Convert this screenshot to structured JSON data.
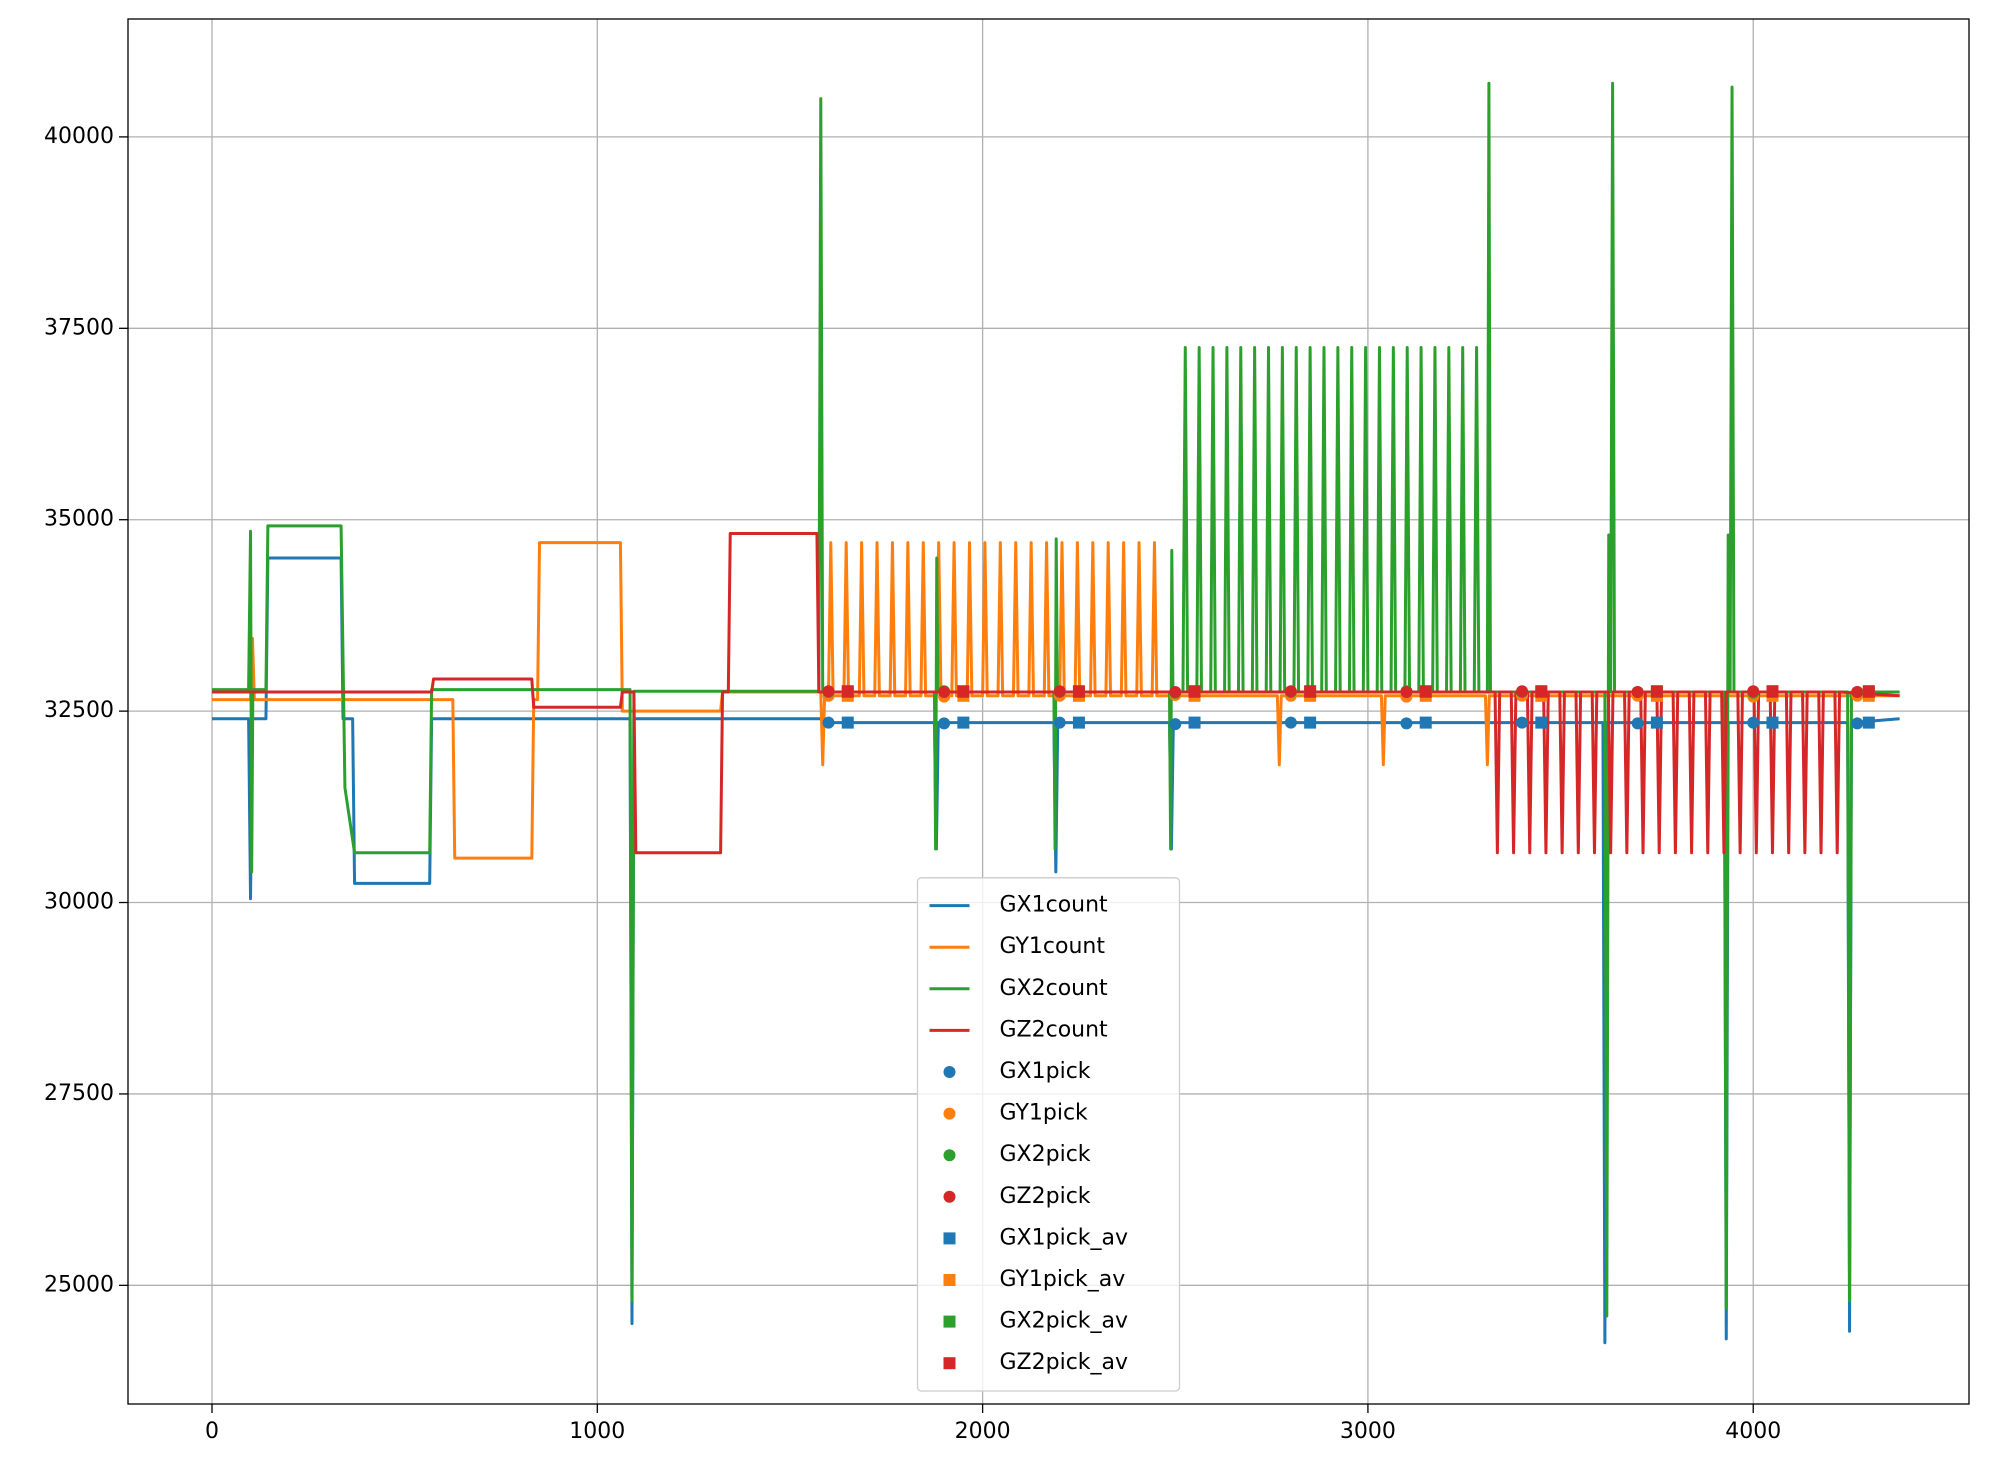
{
  "chart_data": {
    "type": "line",
    "xlim": [
      -218,
      4560
    ],
    "ylim": [
      23450,
      41540
    ],
    "xticks": [
      0,
      1000,
      2000,
      3000,
      4000
    ],
    "yticks": [
      25000,
      27500,
      30000,
      32500,
      35000,
      37500,
      40000
    ],
    "grid": true,
    "legend": "lower center",
    "series": [
      {
        "name": "GX1count",
        "color": "#1f77b4",
        "x": [
          0,
          95,
          100,
          105,
          140,
          145,
          335,
          340,
          365,
          370,
          565,
          570,
          1085,
          1090,
          1095,
          1580,
          1585,
          1875,
          1880,
          1885,
          2185,
          2190,
          2195,
          2485,
          2490,
          2495,
          3610,
          3615,
          3620,
          3925,
          3930,
          3935,
          4245,
          4250,
          4255,
          4380
        ],
        "values": [
          32400,
          32400,
          30050,
          32400,
          32400,
          34500,
          34500,
          32400,
          32400,
          30250,
          30250,
          32400,
          32400,
          24500,
          32400,
          32400,
          32350,
          32350,
          30700,
          32350,
          32350,
          30400,
          32350,
          32350,
          30700,
          32350,
          32350,
          24250,
          32350,
          32350,
          24300,
          32350,
          32350,
          24400,
          32350,
          32400
        ]
      },
      {
        "name": "GY1count",
        "color": "#ff7f0e",
        "x": [
          0,
          100,
          105,
          110,
          625,
          630,
          830,
          835,
          845,
          850,
          1060,
          1065,
          1320,
          1325,
          1580,
          1585,
          1590,
          1600,
          1606,
          1612,
          1640,
          1646,
          1652,
          1680,
          1686,
          1692,
          1720,
          1726,
          1732,
          1760,
          1766,
          1772,
          1800,
          1806,
          1812,
          1840,
          1846,
          1852,
          1880,
          1886,
          1892,
          1920,
          1926,
          1932,
          1960,
          1966,
          1972,
          2000,
          2006,
          2012,
          2040,
          2046,
          2052,
          2080,
          2086,
          2092,
          2120,
          2126,
          2132,
          2160,
          2166,
          2172,
          2200,
          2206,
          2212,
          2240,
          2246,
          2252,
          2280,
          2286,
          2292,
          2320,
          2326,
          2332,
          2360,
          2366,
          2372,
          2400,
          2406,
          2412,
          2440,
          2446,
          2452,
          2500,
          2765,
          2770,
          2775,
          3035,
          3040,
          3045,
          3305,
          3310,
          3315,
          4380
        ],
        "values": [
          32650,
          32650,
          33450,
          32650,
          32650,
          30580,
          30580,
          32650,
          32650,
          34700,
          34700,
          32500,
          32500,
          32750,
          32750,
          31800,
          32700,
          32700,
          34700,
          32700,
          32700,
          34700,
          32700,
          32700,
          34700,
          32700,
          32700,
          34700,
          32700,
          32700,
          34700,
          32700,
          32700,
          34700,
          32700,
          32700,
          34700,
          32700,
          32700,
          34700,
          32700,
          32700,
          34700,
          32700,
          32700,
          34700,
          32700,
          32700,
          34700,
          32700,
          32700,
          34700,
          32700,
          32700,
          34700,
          32700,
          32700,
          34700,
          32700,
          32700,
          34700,
          32700,
          32700,
          34700,
          32700,
          32700,
          34700,
          32700,
          32700,
          34700,
          32700,
          32700,
          34700,
          32700,
          32700,
          34700,
          32700,
          32700,
          34700,
          32700,
          32700,
          34700,
          32700,
          32700,
          32700,
          31800,
          32700,
          32700,
          31800,
          32700,
          32700,
          31800,
          32700,
          32700
        ]
      },
      {
        "name": "GX2count",
        "color": "#2ca02c",
        "x": [
          0,
          95,
          100,
          103,
          106,
          140,
          145,
          335,
          345,
          370,
          565,
          570,
          1085,
          1090,
          1095,
          1575,
          1580,
          1585,
          1875,
          1878,
          1881,
          1884,
          2185,
          2188,
          2191,
          2194,
          2485,
          2488,
          2491,
          2494,
          2520,
          2526,
          2532,
          2556,
          2562,
          2568,
          2592,
          2598,
          2604,
          2628,
          2634,
          2640,
          2664,
          2670,
          2676,
          2700,
          2706,
          2712,
          2736,
          2742,
          2748,
          2772,
          2778,
          2784,
          2808,
          2814,
          2820,
          2844,
          2850,
          2856,
          2880,
          2886,
          2892,
          2916,
          2922,
          2928,
          2952,
          2958,
          2964,
          2988,
          2994,
          3000,
          3024,
          3030,
          3036,
          3060,
          3066,
          3072,
          3096,
          3102,
          3108,
          3132,
          3138,
          3144,
          3168,
          3174,
          3180,
          3204,
          3210,
          3216,
          3240,
          3246,
          3252,
          3276,
          3282,
          3288,
          3310,
          3314,
          3318,
          3615,
          3620,
          3625,
          3630,
          3635,
          3640,
          3925,
          3930,
          3935,
          3940,
          3945,
          3950,
          4245,
          4250,
          4255,
          4380
        ],
        "values": [
          32780,
          32780,
          34850,
          30400,
          32780,
          32780,
          34920,
          34920,
          31500,
          30650,
          30650,
          32780,
          32780,
          24800,
          32760,
          32760,
          40500,
          32750,
          32750,
          30700,
          34500,
          32750,
          32750,
          30700,
          34750,
          32750,
          32750,
          30700,
          34600,
          32750,
          32750,
          37250,
          32750,
          32750,
          37250,
          32750,
          32750,
          37250,
          32750,
          32750,
          37250,
          32750,
          32750,
          37250,
          32750,
          32750,
          37250,
          32750,
          32750,
          37250,
          32750,
          32750,
          37250,
          32750,
          32750,
          37250,
          32750,
          32750,
          37250,
          32750,
          32750,
          37250,
          32750,
          32750,
          37250,
          32750,
          32750,
          37250,
          32750,
          32750,
          37250,
          32750,
          32750,
          37250,
          32750,
          32750,
          37250,
          32750,
          32750,
          37250,
          32750,
          32750,
          37250,
          32750,
          32750,
          37250,
          32750,
          32750,
          37250,
          32750,
          32750,
          37250,
          32750,
          32750,
          37250,
          32750,
          32750,
          40700,
          32750,
          32750,
          24600,
          34800,
          32750,
          40700,
          32750,
          32750,
          24700,
          34800,
          32750,
          40650,
          32750,
          32750,
          24800,
          32750,
          32750
        ]
      },
      {
        "name": "GZ2count",
        "color": "#d62728",
        "x": [
          0,
          570,
          575,
          830,
          835,
          1060,
          1065,
          1095,
          1100,
          1320,
          1325,
          1340,
          1345,
          1570,
          1575,
          3330,
          3336,
          3342,
          3372,
          3378,
          3384,
          3414,
          3420,
          3426,
          3456,
          3462,
          3468,
          3498,
          3504,
          3510,
          3540,
          3546,
          3552,
          3582,
          3588,
          3594,
          3624,
          3630,
          3636,
          3666,
          3672,
          3678,
          3708,
          3714,
          3720,
          3750,
          3756,
          3762,
          3792,
          3798,
          3804,
          3834,
          3840,
          3846,
          3876,
          3882,
          3888,
          3918,
          3924,
          3930,
          3960,
          3966,
          3972,
          4002,
          4008,
          4014,
          4044,
          4050,
          4056,
          4086,
          4092,
          4098,
          4128,
          4134,
          4140,
          4170,
          4176,
          4182,
          4212,
          4218,
          4224,
          4380
        ],
        "values": [
          32750,
          32750,
          32920,
          32920,
          32550,
          32550,
          32750,
          32750,
          30650,
          30650,
          32750,
          32750,
          34820,
          34820,
          32750,
          32750,
          30650,
          32750,
          32750,
          30650,
          32750,
          32750,
          30650,
          32750,
          32750,
          30650,
          32750,
          32750,
          30650,
          32750,
          32750,
          30650,
          32750,
          32750,
          30650,
          32750,
          32750,
          30650,
          32750,
          32750,
          30650,
          32750,
          32750,
          30650,
          32750,
          32750,
          30650,
          32750,
          32750,
          30650,
          32750,
          32750,
          30650,
          32750,
          32750,
          30650,
          32750,
          32750,
          30650,
          32750,
          32750,
          30650,
          32750,
          32750,
          30650,
          32750,
          32750,
          30650,
          32750,
          32750,
          30650,
          32750,
          32750,
          30650,
          32750,
          32750,
          30650,
          32750,
          32750,
          30650,
          32750,
          32700
        ]
      },
      {
        "name": "GX1pick",
        "color": "#1f77b4",
        "marker": "circle",
        "x": [
          1600,
          1900,
          2200,
          2500,
          2800,
          3100,
          3400,
          3700,
          4000,
          4270
        ],
        "values": [
          32350,
          32340,
          32350,
          32330,
          32350,
          32340,
          32350,
          32340,
          32350,
          32340
        ]
      },
      {
        "name": "GY1pick",
        "color": "#ff7f0e",
        "marker": "circle",
        "x": [
          1600,
          1900,
          2200,
          2500,
          2800,
          3100,
          3400,
          3700,
          4000,
          4270
        ],
        "values": [
          32700,
          32690,
          32700,
          32710,
          32700,
          32690,
          32700,
          32700,
          32690,
          32700
        ]
      },
      {
        "name": "GX2pick",
        "color": "#2ca02c",
        "marker": "circle",
        "x": [
          1600,
          1900,
          2200,
          2500,
          2800,
          3100,
          3400,
          3700,
          4000,
          4270
        ],
        "values": [
          32750,
          32760,
          32750,
          32740,
          32750,
          32760,
          32750,
          32750,
          32740,
          32750
        ]
      },
      {
        "name": "GZ2pick",
        "color": "#d62728",
        "marker": "circle",
        "x": [
          1600,
          1900,
          2200,
          2500,
          2800,
          3100,
          3400,
          3700,
          4000,
          4270
        ],
        "values": [
          32760,
          32750,
          32760,
          32750,
          32760,
          32750,
          32760,
          32750,
          32760,
          32750
        ]
      },
      {
        "name": "GX1pick_av",
        "color": "#1f77b4",
        "marker": "square",
        "x": [
          1650,
          1950,
          2250,
          2550,
          2850,
          3150,
          3450,
          3750,
          4050,
          4300
        ],
        "values": [
          32350,
          32350,
          32350,
          32350,
          32350,
          32350,
          32350,
          32350,
          32350,
          32350
        ]
      },
      {
        "name": "GY1pick_av",
        "color": "#ff7f0e",
        "marker": "square",
        "x": [
          1650,
          1950,
          2250,
          2550,
          2850,
          3150,
          3450,
          3750,
          4050,
          4300
        ],
        "values": [
          32700,
          32700,
          32700,
          32700,
          32700,
          32700,
          32700,
          32700,
          32700,
          32700
        ]
      },
      {
        "name": "GX2pick_av",
        "color": "#2ca02c",
        "marker": "square",
        "x": [
          1650,
          1950,
          2250,
          2550,
          2850,
          3150,
          3450,
          3750,
          4050,
          4300
        ],
        "values": [
          32750,
          32750,
          32750,
          32750,
          32750,
          32750,
          32750,
          32750,
          32750,
          32750
        ]
      },
      {
        "name": "GZ2pick_av",
        "color": "#d62728",
        "marker": "square",
        "x": [
          1650,
          1950,
          2250,
          2550,
          2850,
          3150,
          3450,
          3750,
          4050,
          4300
        ],
        "values": [
          32760,
          32760,
          32760,
          32760,
          32760,
          32760,
          32760,
          32760,
          32760,
          32760
        ]
      }
    ]
  }
}
